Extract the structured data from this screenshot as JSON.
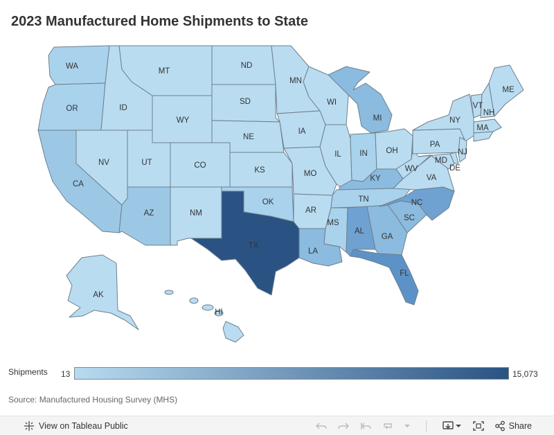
{
  "title": "2023 Manufactured Home Shipments to State",
  "legend": {
    "label": "Shipments",
    "min_label": "13",
    "max_label": "15,073",
    "color_low": "#b7dbf0",
    "color_high": "#2a5383"
  },
  "source": "Source: Manufactured Housing Survey (MHS)",
  "colors": {
    "light": "#b9dcf1",
    "light2": "#a9d2ed",
    "mid_light": "#9cc8e6",
    "mid": "#8bbbdf",
    "mid_dark": "#6fa2d1",
    "dark": "#5d92c6",
    "texas": "#2a5383",
    "water": "#ffffff"
  },
  "states": {
    "WA": "WA",
    "OR": "OR",
    "CA": "CA",
    "NV": "NV",
    "ID": "ID",
    "MT": "MT",
    "WY": "WY",
    "UT": "UT",
    "AZ": "AZ",
    "CO": "CO",
    "NM": "NM",
    "ND": "ND",
    "SD": "SD",
    "NE": "NE",
    "KS": "KS",
    "OK": "OK",
    "TX": "TX",
    "MN": "MN",
    "IA": "IA",
    "MO": "MO",
    "AR": "AR",
    "LA": "LA",
    "WI": "WI",
    "IL": "IL",
    "MI": "MI",
    "IN": "IN",
    "OH": "OH",
    "KY": "KY",
    "TN": "TN",
    "MS": "MS",
    "AL": "AL",
    "GA": "GA",
    "FL": "FL",
    "SC": "SC",
    "NC": "NC",
    "VA": "VA",
    "WV": "WV",
    "PA": "PA",
    "NY": "NY",
    "VT": "VT",
    "NH": "NH",
    "ME": "ME",
    "MA": "MA",
    "NJ": "NJ",
    "MD": "MD",
    "DE": "DE",
    "AK": "AK",
    "HI": "HI"
  },
  "toolbar": {
    "view_label": "View on Tableau Public",
    "share_label": "Share",
    "icons": [
      "tableau-logo-icon",
      "undo-icon",
      "redo-icon",
      "revert-icon",
      "refresh-icon",
      "pause-dropdown-icon",
      "download-icon",
      "fullscreen-icon",
      "share-icon"
    ]
  }
}
